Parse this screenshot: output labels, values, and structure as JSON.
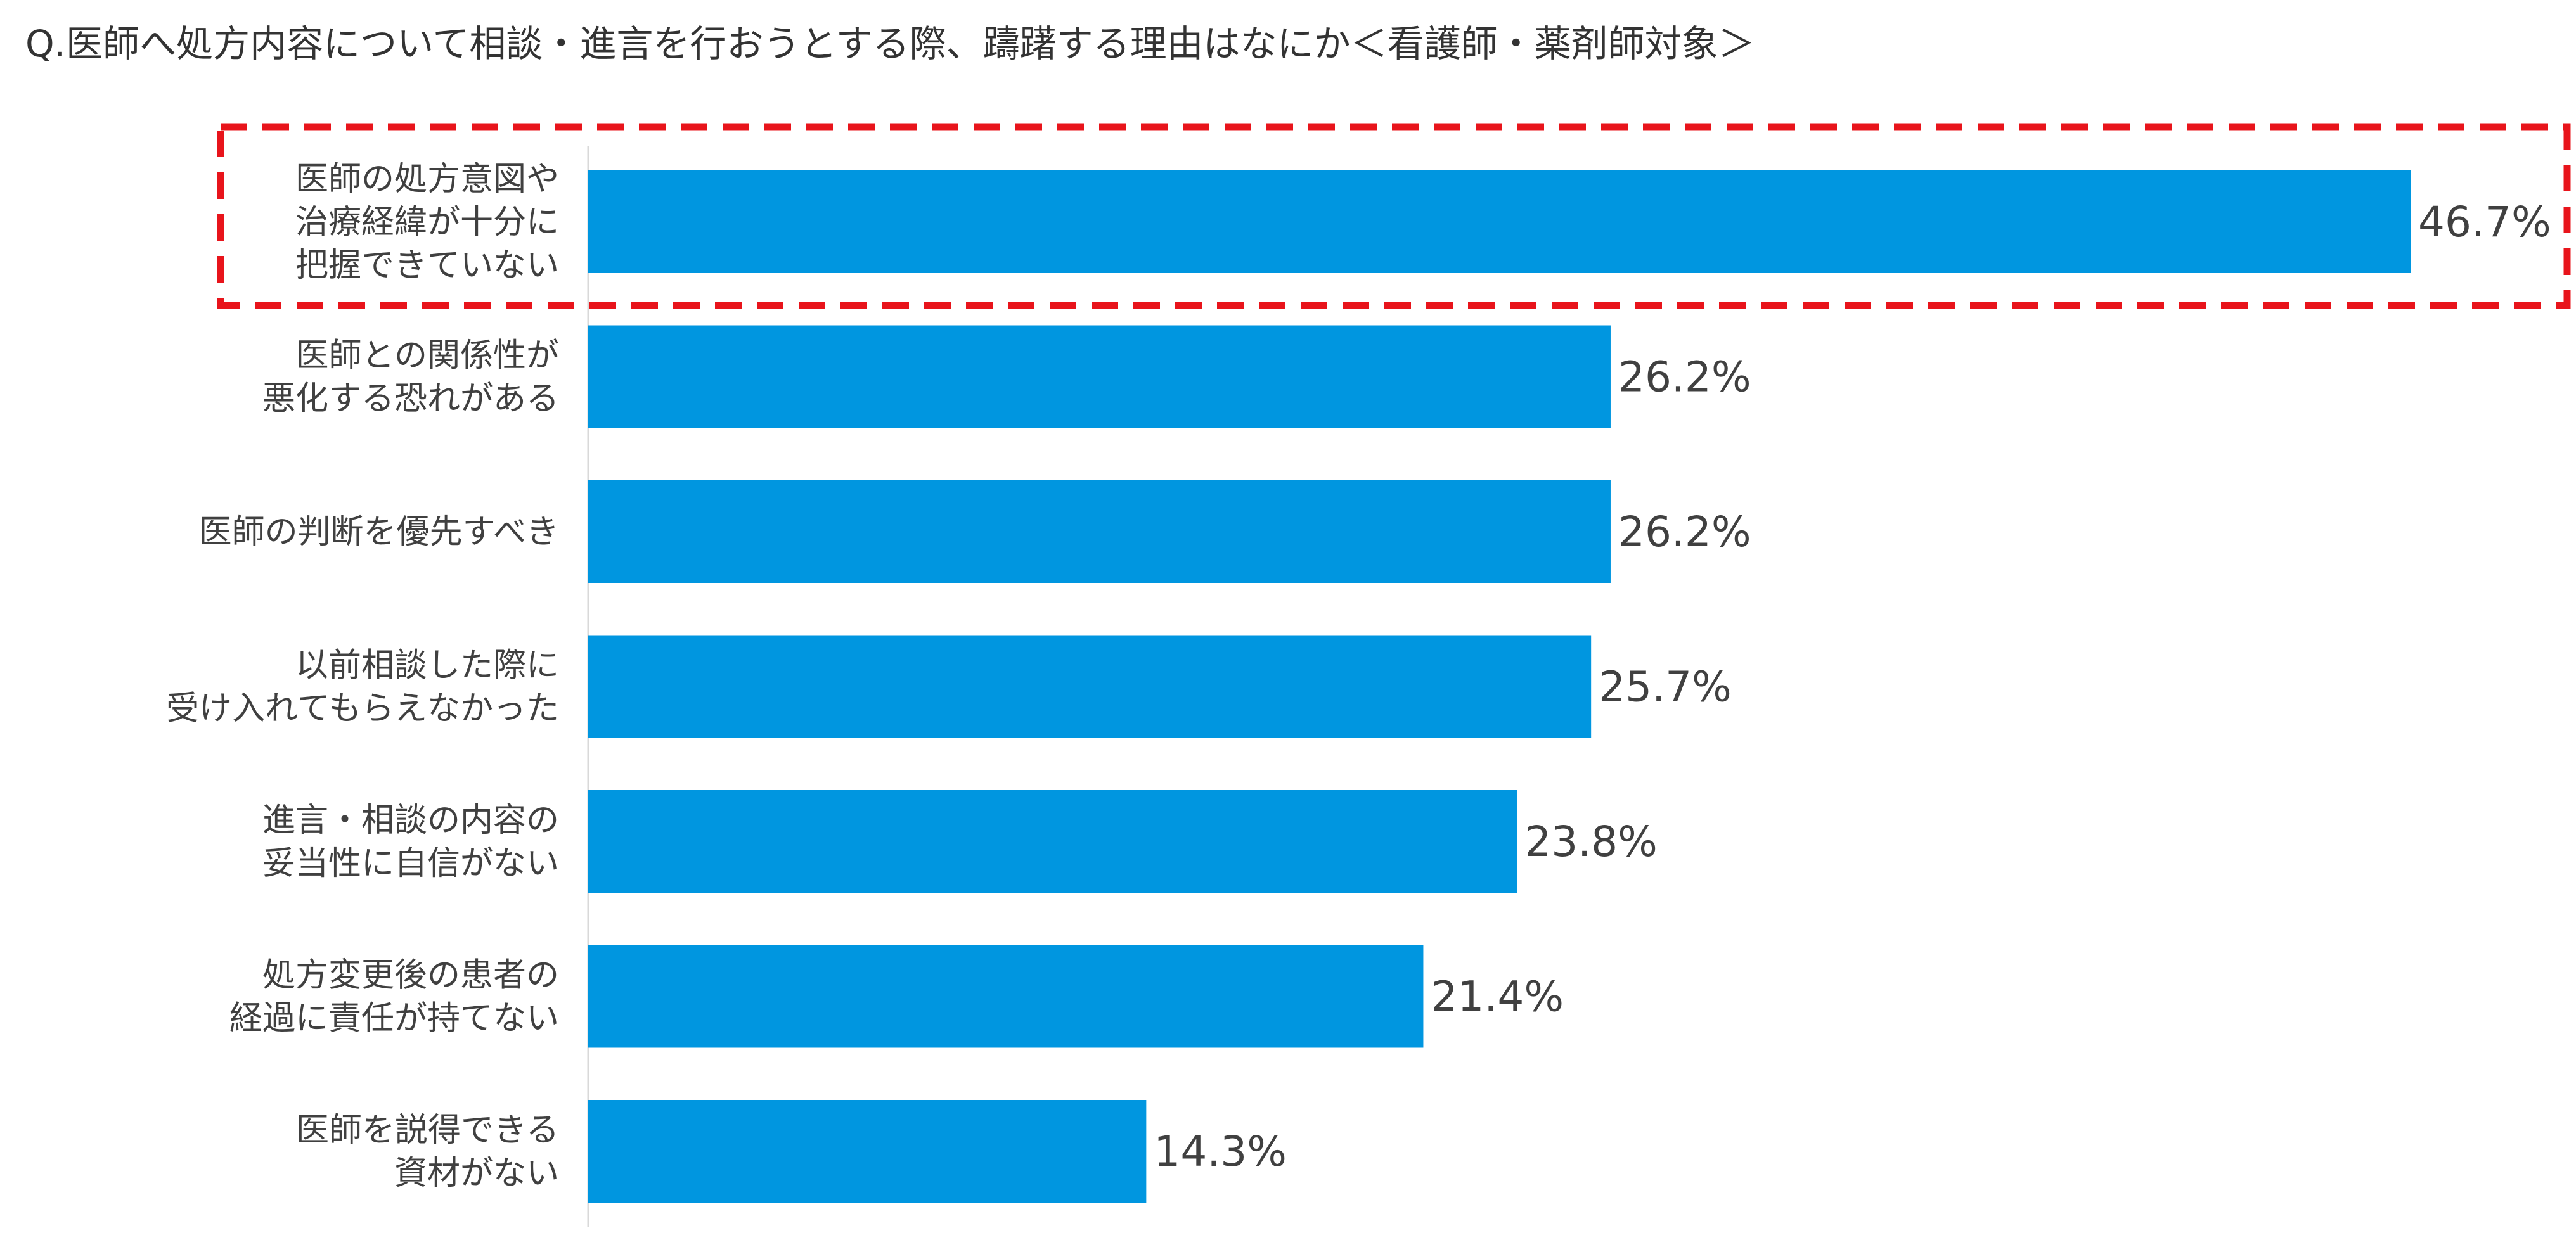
{
  "chart_data": {
    "type": "bar",
    "orientation": "horizontal",
    "title": "Q.医師へ処方内容について相談・進言を行おうとする際、躊躇する理由はなにか＜看護師・薬剤師対象＞",
    "categories": [
      [
        "医師の処方意図や",
        "治療経緯が十分に",
        "把握できていない"
      ],
      [
        "医師との関係性が",
        "悪化する恐れがある"
      ],
      [
        "医師の判断を優先すべき"
      ],
      [
        "以前相談した際に",
        "受け入れてもらえなかった"
      ],
      [
        "進言・相談の内容の",
        "妥当性に自信がない"
      ],
      [
        "処方変更後の患者の",
        "経過に責任が持てない"
      ],
      [
        "医師を説得できる",
        "資材がない"
      ]
    ],
    "values": [
      46.7,
      26.2,
      26.2,
      25.7,
      23.8,
      21.4,
      14.3
    ],
    "value_labels": [
      "46.7%",
      "26.2%",
      "26.2%",
      "25.7%",
      "23.8%",
      "21.4%",
      "14.3%"
    ],
    "unit": "%",
    "xlim": [
      0,
      46.7
    ],
    "grid": false,
    "legend": "none",
    "highlighted_index": 0,
    "bar_color": "#0096E0",
    "highlight_border_color": "#E8141B",
    "axis_color": "#D9D9D9"
  }
}
